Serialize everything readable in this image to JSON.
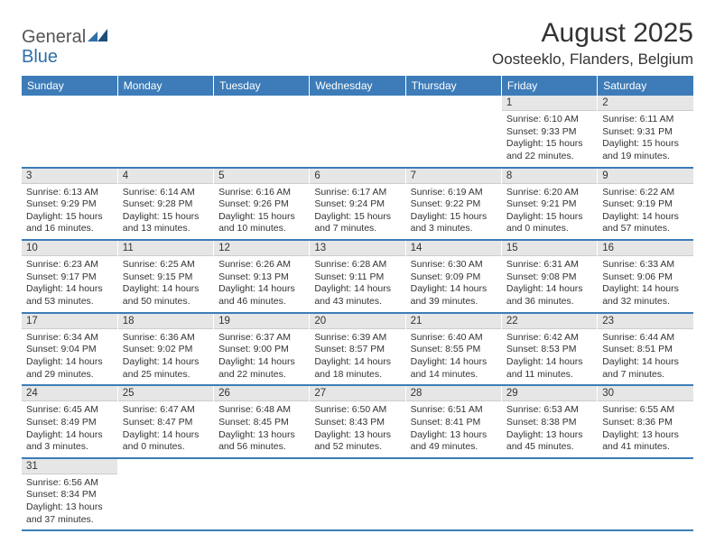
{
  "logo": {
    "general": "General",
    "blue": "Blue"
  },
  "title": "August 2025",
  "location": "Oosteeklo, Flanders, Belgium",
  "colors": {
    "header_bg": "#3d7cb8",
    "daynum_bg": "#e6e6e6",
    "row_border": "#3d7cb8",
    "text": "#333333",
    "logo_blue": "#2f6fa8"
  },
  "dayHeaders": [
    "Sunday",
    "Monday",
    "Tuesday",
    "Wednesday",
    "Thursday",
    "Friday",
    "Saturday"
  ],
  "weeks": [
    [
      null,
      null,
      null,
      null,
      null,
      {
        "n": "1",
        "sr": "Sunrise: 6:10 AM",
        "ss": "Sunset: 9:33 PM",
        "dl1": "Daylight: 15 hours",
        "dl2": "and 22 minutes."
      },
      {
        "n": "2",
        "sr": "Sunrise: 6:11 AM",
        "ss": "Sunset: 9:31 PM",
        "dl1": "Daylight: 15 hours",
        "dl2": "and 19 minutes."
      }
    ],
    [
      {
        "n": "3",
        "sr": "Sunrise: 6:13 AM",
        "ss": "Sunset: 9:29 PM",
        "dl1": "Daylight: 15 hours",
        "dl2": "and 16 minutes."
      },
      {
        "n": "4",
        "sr": "Sunrise: 6:14 AM",
        "ss": "Sunset: 9:28 PM",
        "dl1": "Daylight: 15 hours",
        "dl2": "and 13 minutes."
      },
      {
        "n": "5",
        "sr": "Sunrise: 6:16 AM",
        "ss": "Sunset: 9:26 PM",
        "dl1": "Daylight: 15 hours",
        "dl2": "and 10 minutes."
      },
      {
        "n": "6",
        "sr": "Sunrise: 6:17 AM",
        "ss": "Sunset: 9:24 PM",
        "dl1": "Daylight: 15 hours",
        "dl2": "and 7 minutes."
      },
      {
        "n": "7",
        "sr": "Sunrise: 6:19 AM",
        "ss": "Sunset: 9:22 PM",
        "dl1": "Daylight: 15 hours",
        "dl2": "and 3 minutes."
      },
      {
        "n": "8",
        "sr": "Sunrise: 6:20 AM",
        "ss": "Sunset: 9:21 PM",
        "dl1": "Daylight: 15 hours",
        "dl2": "and 0 minutes."
      },
      {
        "n": "9",
        "sr": "Sunrise: 6:22 AM",
        "ss": "Sunset: 9:19 PM",
        "dl1": "Daylight: 14 hours",
        "dl2": "and 57 minutes."
      }
    ],
    [
      {
        "n": "10",
        "sr": "Sunrise: 6:23 AM",
        "ss": "Sunset: 9:17 PM",
        "dl1": "Daylight: 14 hours",
        "dl2": "and 53 minutes."
      },
      {
        "n": "11",
        "sr": "Sunrise: 6:25 AM",
        "ss": "Sunset: 9:15 PM",
        "dl1": "Daylight: 14 hours",
        "dl2": "and 50 minutes."
      },
      {
        "n": "12",
        "sr": "Sunrise: 6:26 AM",
        "ss": "Sunset: 9:13 PM",
        "dl1": "Daylight: 14 hours",
        "dl2": "and 46 minutes."
      },
      {
        "n": "13",
        "sr": "Sunrise: 6:28 AM",
        "ss": "Sunset: 9:11 PM",
        "dl1": "Daylight: 14 hours",
        "dl2": "and 43 minutes."
      },
      {
        "n": "14",
        "sr": "Sunrise: 6:30 AM",
        "ss": "Sunset: 9:09 PM",
        "dl1": "Daylight: 14 hours",
        "dl2": "and 39 minutes."
      },
      {
        "n": "15",
        "sr": "Sunrise: 6:31 AM",
        "ss": "Sunset: 9:08 PM",
        "dl1": "Daylight: 14 hours",
        "dl2": "and 36 minutes."
      },
      {
        "n": "16",
        "sr": "Sunrise: 6:33 AM",
        "ss": "Sunset: 9:06 PM",
        "dl1": "Daylight: 14 hours",
        "dl2": "and 32 minutes."
      }
    ],
    [
      {
        "n": "17",
        "sr": "Sunrise: 6:34 AM",
        "ss": "Sunset: 9:04 PM",
        "dl1": "Daylight: 14 hours",
        "dl2": "and 29 minutes."
      },
      {
        "n": "18",
        "sr": "Sunrise: 6:36 AM",
        "ss": "Sunset: 9:02 PM",
        "dl1": "Daylight: 14 hours",
        "dl2": "and 25 minutes."
      },
      {
        "n": "19",
        "sr": "Sunrise: 6:37 AM",
        "ss": "Sunset: 9:00 PM",
        "dl1": "Daylight: 14 hours",
        "dl2": "and 22 minutes."
      },
      {
        "n": "20",
        "sr": "Sunrise: 6:39 AM",
        "ss": "Sunset: 8:57 PM",
        "dl1": "Daylight: 14 hours",
        "dl2": "and 18 minutes."
      },
      {
        "n": "21",
        "sr": "Sunrise: 6:40 AM",
        "ss": "Sunset: 8:55 PM",
        "dl1": "Daylight: 14 hours",
        "dl2": "and 14 minutes."
      },
      {
        "n": "22",
        "sr": "Sunrise: 6:42 AM",
        "ss": "Sunset: 8:53 PM",
        "dl1": "Daylight: 14 hours",
        "dl2": "and 11 minutes."
      },
      {
        "n": "23",
        "sr": "Sunrise: 6:44 AM",
        "ss": "Sunset: 8:51 PM",
        "dl1": "Daylight: 14 hours",
        "dl2": "and 7 minutes."
      }
    ],
    [
      {
        "n": "24",
        "sr": "Sunrise: 6:45 AM",
        "ss": "Sunset: 8:49 PM",
        "dl1": "Daylight: 14 hours",
        "dl2": "and 3 minutes."
      },
      {
        "n": "25",
        "sr": "Sunrise: 6:47 AM",
        "ss": "Sunset: 8:47 PM",
        "dl1": "Daylight: 14 hours",
        "dl2": "and 0 minutes."
      },
      {
        "n": "26",
        "sr": "Sunrise: 6:48 AM",
        "ss": "Sunset: 8:45 PM",
        "dl1": "Daylight: 13 hours",
        "dl2": "and 56 minutes."
      },
      {
        "n": "27",
        "sr": "Sunrise: 6:50 AM",
        "ss": "Sunset: 8:43 PM",
        "dl1": "Daylight: 13 hours",
        "dl2": "and 52 minutes."
      },
      {
        "n": "28",
        "sr": "Sunrise: 6:51 AM",
        "ss": "Sunset: 8:41 PM",
        "dl1": "Daylight: 13 hours",
        "dl2": "and 49 minutes."
      },
      {
        "n": "29",
        "sr": "Sunrise: 6:53 AM",
        "ss": "Sunset: 8:38 PM",
        "dl1": "Daylight: 13 hours",
        "dl2": "and 45 minutes."
      },
      {
        "n": "30",
        "sr": "Sunrise: 6:55 AM",
        "ss": "Sunset: 8:36 PM",
        "dl1": "Daylight: 13 hours",
        "dl2": "and 41 minutes."
      }
    ],
    [
      {
        "n": "31",
        "sr": "Sunrise: 6:56 AM",
        "ss": "Sunset: 8:34 PM",
        "dl1": "Daylight: 13 hours",
        "dl2": "and 37 minutes."
      },
      null,
      null,
      null,
      null,
      null,
      null
    ]
  ]
}
